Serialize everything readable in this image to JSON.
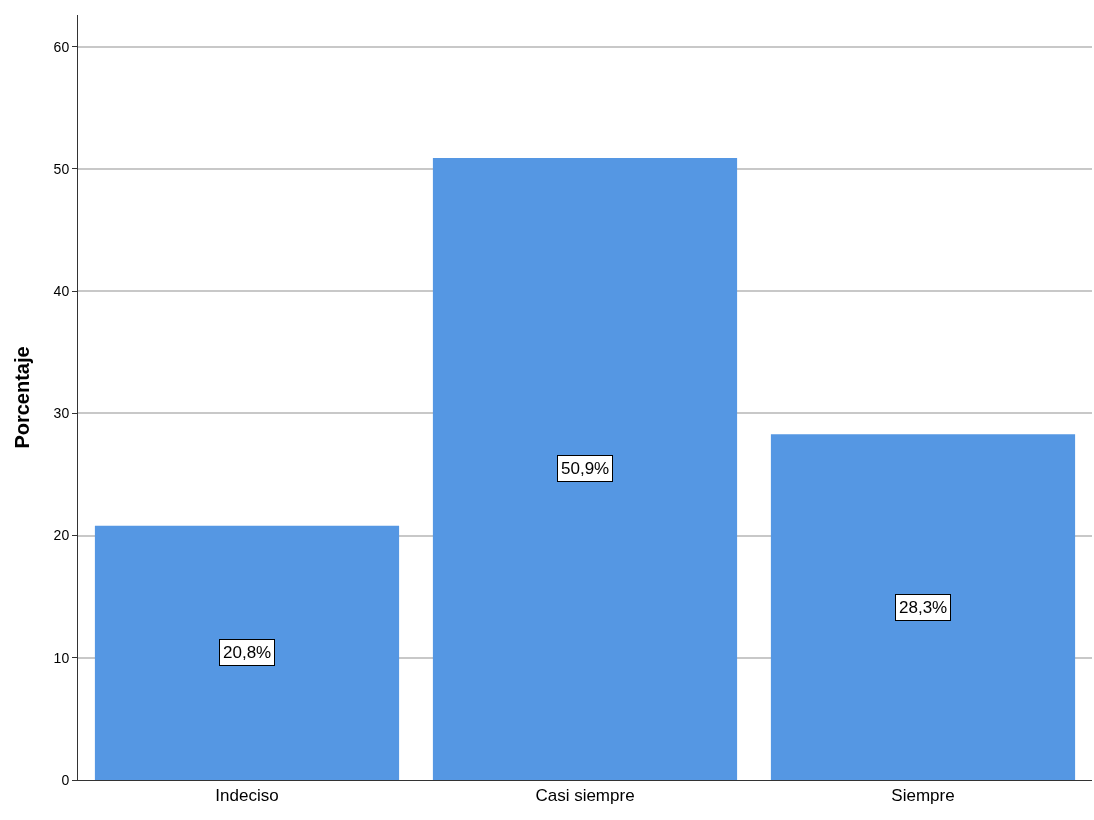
{
  "chart_data": {
    "type": "bar",
    "ylabel": "Porcentaje",
    "categories": [
      "Indeciso",
      "Casi siempre",
      "Siempre"
    ],
    "values": [
      20.8,
      50.9,
      28.3
    ],
    "value_labels": [
      "20,8%",
      "50,9%",
      "28,3%"
    ],
    "color": "#5597e3",
    "ylim": [
      0,
      62.6
    ],
    "yticks": [
      0,
      10,
      20,
      30,
      40,
      50,
      60
    ],
    "grid": "y",
    "legend": false
  }
}
